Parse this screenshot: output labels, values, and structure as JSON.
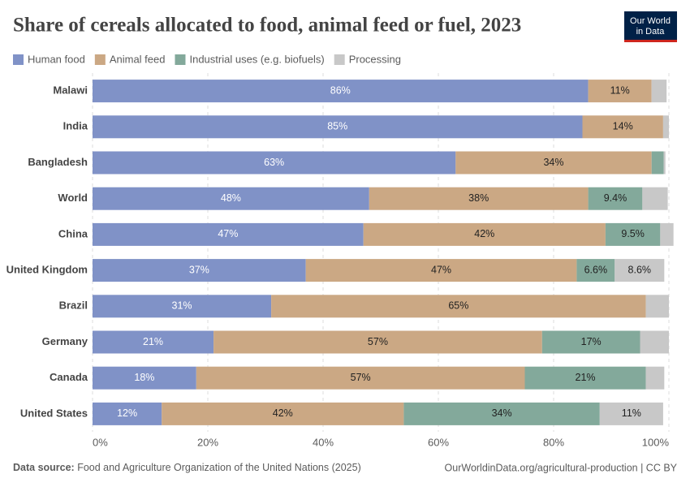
{
  "logo": [
    "Our World",
    "in Data"
  ],
  "source_label": "Data source:",
  "source": "Food and Agriculture Organization of the United Nations (2025)",
  "footer_url": "OurWorldinData.org/agricultural-production | CC BY",
  "chart_data": {
    "type": "bar",
    "orientation": "horizontal",
    "stacked": true,
    "title": "Share of cereals allocated to food, animal feed or fuel, 2023",
    "categories": [
      "Malawi",
      "India",
      "Bangladesh",
      "World",
      "China",
      "United Kingdom",
      "Brazil",
      "Germany",
      "Canada",
      "United States"
    ],
    "series": [
      {
        "name": "Human food",
        "color": "#8092c7",
        "label_color": "#ffffff",
        "values": [
          86,
          85,
          63,
          48,
          47,
          37,
          31,
          21,
          18,
          12
        ],
        "value_labels": [
          "86%",
          "85%",
          "63%",
          "48%",
          "47%",
          "37%",
          "31%",
          "21%",
          "18%",
          "12%"
        ]
      },
      {
        "name": "Animal feed",
        "color": "#cba884",
        "label_color": "#222222",
        "values": [
          11,
          14,
          34,
          38,
          42,
          47,
          65,
          57,
          57,
          42
        ],
        "value_labels": [
          "11%",
          "14%",
          "34%",
          "38%",
          "42%",
          "47%",
          "65%",
          "57%",
          "57%",
          "42%"
        ]
      },
      {
        "name": "Industrial uses (e.g. biofuels)",
        "color": "#83a99b",
        "label_color": "#222222",
        "values": [
          0,
          0,
          2.1,
          9.4,
          9.5,
          6.6,
          0,
          17,
          21,
          34
        ],
        "value_labels": [
          null,
          null,
          null,
          "9.4%",
          "9.5%",
          "6.6%",
          null,
          "17%",
          "21%",
          "34%"
        ]
      },
      {
        "name": "Processing",
        "color": "#c8c8c8",
        "label_color": "#222222",
        "values": [
          2.6,
          1,
          0.3,
          4.4,
          2.3,
          8.6,
          4,
          5,
          3.2,
          11
        ],
        "value_labels": [
          null,
          null,
          null,
          null,
          null,
          "8.6%",
          null,
          null,
          null,
          "11%"
        ]
      }
    ],
    "xlim": [
      0,
      100
    ],
    "xticks": [
      {
        "value": 0,
        "label": "0%"
      },
      {
        "value": 20,
        "label": "20%"
      },
      {
        "value": 40,
        "label": "40%"
      },
      {
        "value": 60,
        "label": "60%"
      },
      {
        "value": 80,
        "label": "80%"
      },
      {
        "value": 100,
        "label": "100%"
      }
    ],
    "grid": true,
    "legend": "top-left"
  }
}
